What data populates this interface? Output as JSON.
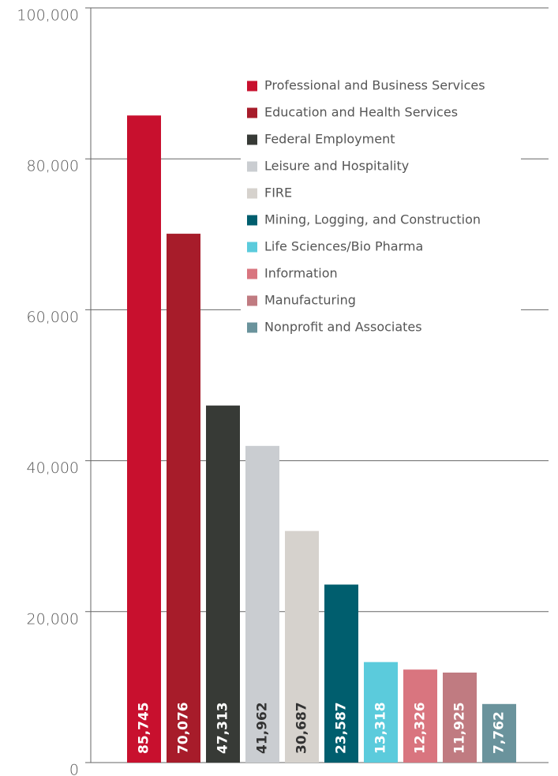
{
  "chart_data": {
    "type": "bar",
    "categories": [
      "Professional and Business Services",
      "Education and Health Services",
      "Federal Employment",
      "Leisure and Hospitality",
      "FIRE",
      "Mining, Logging, and Construction",
      "Life Sciences/Bio Pharma",
      "Information",
      "Manufacturing",
      "Nonprofit and Associates"
    ],
    "values": [
      85745,
      70076,
      47313,
      41962,
      30687,
      23587,
      13318,
      12326,
      11925,
      7762
    ],
    "value_labels": [
      "85,745",
      "70,076",
      "47,313",
      "41,962",
      "30,687",
      "23,587",
      "13,318",
      "12,326",
      "11,925",
      "7,762"
    ],
    "colors": [
      "#c8102e",
      "#a71c2a",
      "#373a36",
      "#cacdd1",
      "#d6d2cd",
      "#005e6e",
      "#5bcbdc",
      "#d9757f",
      "#c07b81",
      "#6a939c"
    ],
    "ylim": [
      0,
      100000
    ],
    "yticks": [
      0,
      {
        "value": 20000,
        "label": "20,000"
      },
      {
        "value": 40000,
        "label": "40,000"
      },
      {
        "value": 60000,
        "label": "60,000"
      },
      {
        "value": 80000,
        "label": "80,000"
      },
      {
        "value": 100000,
        "label": "100,000"
      }
    ],
    "grid": true,
    "legend": "top-right"
  }
}
